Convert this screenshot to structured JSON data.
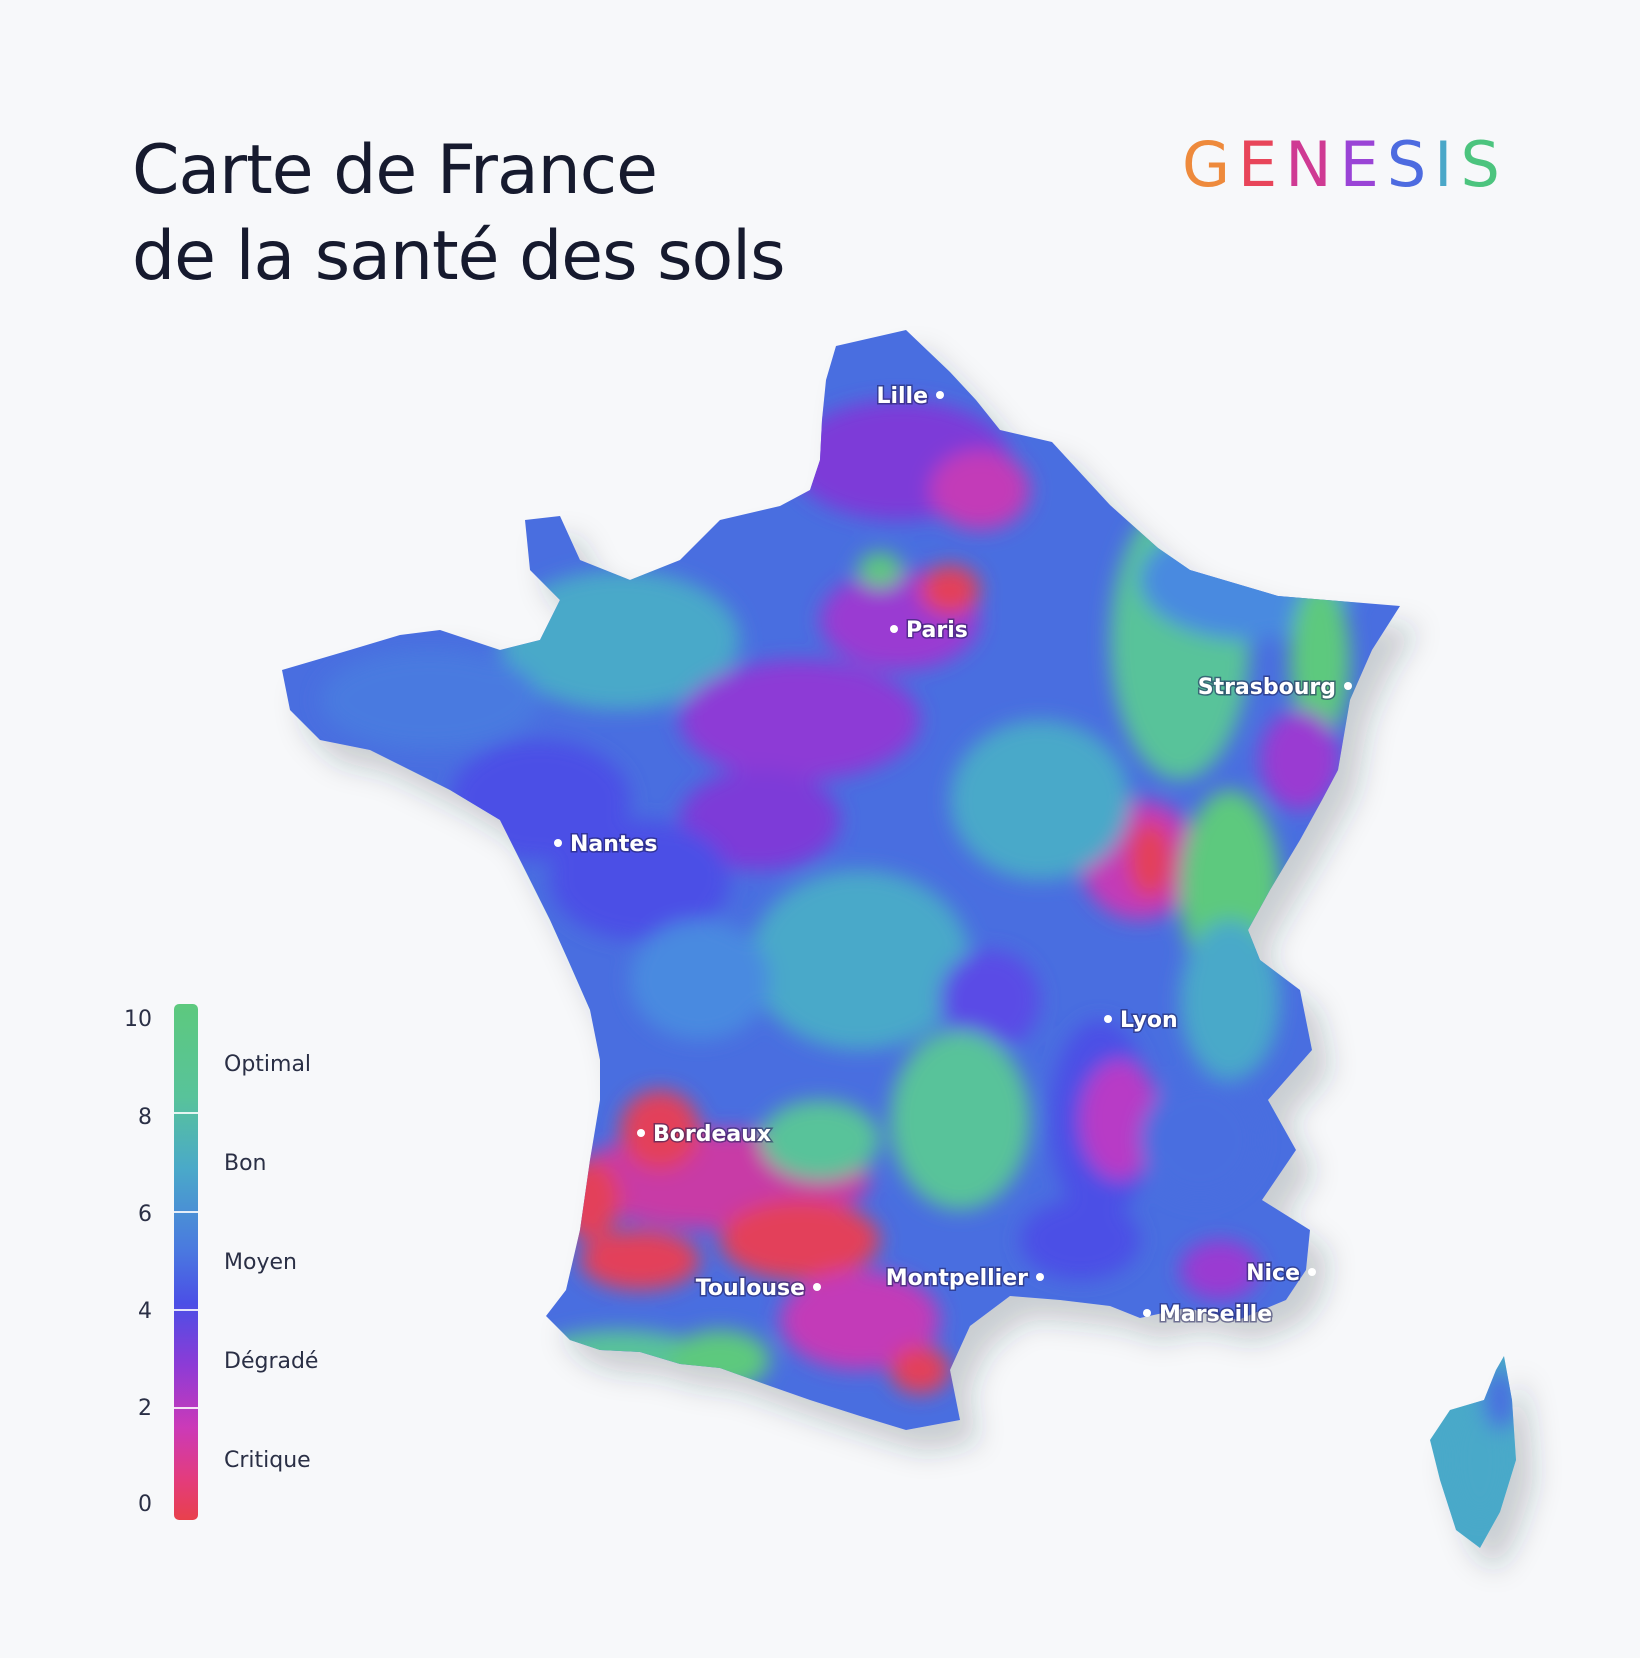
{
  "title": {
    "line1": "Carte de France",
    "line2": "de la santé des sols"
  },
  "logo": {
    "letters": [
      "G",
      "E",
      "N",
      "E",
      "S",
      "I",
      "S"
    ],
    "colors": [
      "#ee8a3c",
      "#e8455a",
      "#cf3a93",
      "#9a44d6",
      "#4d6be0",
      "#4aa7c8",
      "#4cc47e"
    ]
  },
  "cities": [
    {
      "name": "Lille",
      "label_side": "left"
    },
    {
      "name": "Paris",
      "label_side": "right"
    },
    {
      "name": "Strasbourg",
      "label_side": "left"
    },
    {
      "name": "Nantes",
      "label_side": "right"
    },
    {
      "name": "Lyon",
      "label_side": "right"
    },
    {
      "name": "Bordeaux",
      "label_side": "right"
    },
    {
      "name": "Toulouse",
      "label_side": "left"
    },
    {
      "name": "Montpellier",
      "label_side": "left"
    },
    {
      "name": "Nice",
      "label_side": "left"
    },
    {
      "name": "Marseille",
      "label_side": "right"
    }
  ],
  "legend": {
    "ticks": [
      "10",
      "8",
      "6",
      "4",
      "2",
      "0"
    ],
    "categories": [
      "Optimal",
      "Bon",
      "Moyen",
      "Dégradé",
      "Critique"
    ],
    "colors": {
      "optimal": "#5dc97e",
      "bon": "#4aa9c9",
      "moyen": "#4b5ce6",
      "degrade": "#a83cd2",
      "critique": "#e8404c"
    }
  }
}
